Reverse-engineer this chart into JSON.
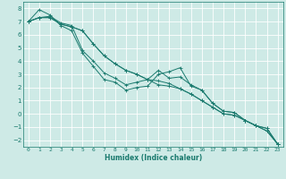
{
  "title": "",
  "xlabel": "Humidex (Indice chaleur)",
  "ylabel": "",
  "xlim": [
    -0.5,
    23.5
  ],
  "ylim": [
    -2.5,
    8.5
  ],
  "xticks": [
    0,
    1,
    2,
    3,
    4,
    5,
    6,
    7,
    8,
    9,
    10,
    11,
    12,
    13,
    14,
    15,
    16,
    17,
    18,
    19,
    20,
    21,
    22,
    23
  ],
  "yticks": [
    -2,
    -1,
    0,
    1,
    2,
    3,
    4,
    5,
    6,
    7,
    8
  ],
  "bg_color": "#ceeae6",
  "grid_color": "#ffffff",
  "line_color": "#1a7a6e",
  "series": [
    {
      "x": [
        0,
        1,
        2,
        3,
        4,
        5,
        6,
        7,
        8,
        9,
        10,
        11,
        12,
        13,
        14,
        15,
        16,
        17,
        18,
        19,
        20,
        21,
        22,
        23
      ],
      "y": [
        7.0,
        7.9,
        7.5,
        6.7,
        6.3,
        4.6,
        3.6,
        2.6,
        2.4,
        1.8,
        2.0,
        2.1,
        3.0,
        3.2,
        3.5,
        2.1,
        1.8,
        0.8,
        0.2,
        0.1,
        -0.5,
        -0.9,
        -1.1,
        -2.3
      ]
    },
    {
      "x": [
        0,
        1,
        2,
        3,
        4,
        5,
        6,
        7,
        8,
        9,
        10,
        11,
        12,
        13,
        14,
        15,
        16,
        17,
        18,
        19,
        20,
        21,
        22,
        23
      ],
      "y": [
        7.0,
        7.3,
        7.3,
        6.8,
        6.6,
        6.3,
        5.3,
        4.4,
        3.8,
        3.3,
        3.0,
        2.6,
        2.5,
        2.3,
        1.9,
        1.5,
        1.0,
        0.5,
        0.0,
        -0.1,
        -0.5,
        -0.9,
        -1.3,
        -2.3
      ]
    },
    {
      "x": [
        0,
        1,
        2,
        3,
        4,
        5,
        6,
        7,
        8,
        9,
        10,
        11,
        12,
        13,
        14,
        15,
        16,
        17,
        18,
        19,
        20,
        21,
        22,
        23
      ],
      "y": [
        7.0,
        7.3,
        7.4,
        6.9,
        6.7,
        4.8,
        4.0,
        3.1,
        2.7,
        2.2,
        2.4,
        2.6,
        3.3,
        2.7,
        2.8,
        2.2,
        1.8,
        0.8,
        0.2,
        0.1,
        -0.5,
        -0.9,
        -1.1,
        -2.3
      ]
    },
    {
      "x": [
        0,
        1,
        2,
        3,
        4,
        5,
        6,
        7,
        8,
        9,
        10,
        11,
        12,
        13,
        14,
        15,
        16,
        17,
        18,
        19,
        20,
        21,
        22,
        23
      ],
      "y": [
        7.0,
        7.3,
        7.3,
        6.8,
        6.6,
        6.3,
        5.3,
        4.4,
        3.8,
        3.3,
        3.0,
        2.6,
        2.2,
        2.1,
        1.9,
        1.5,
        1.0,
        0.5,
        0.0,
        -0.1,
        -0.5,
        -0.9,
        -1.3,
        -2.3
      ]
    }
  ]
}
